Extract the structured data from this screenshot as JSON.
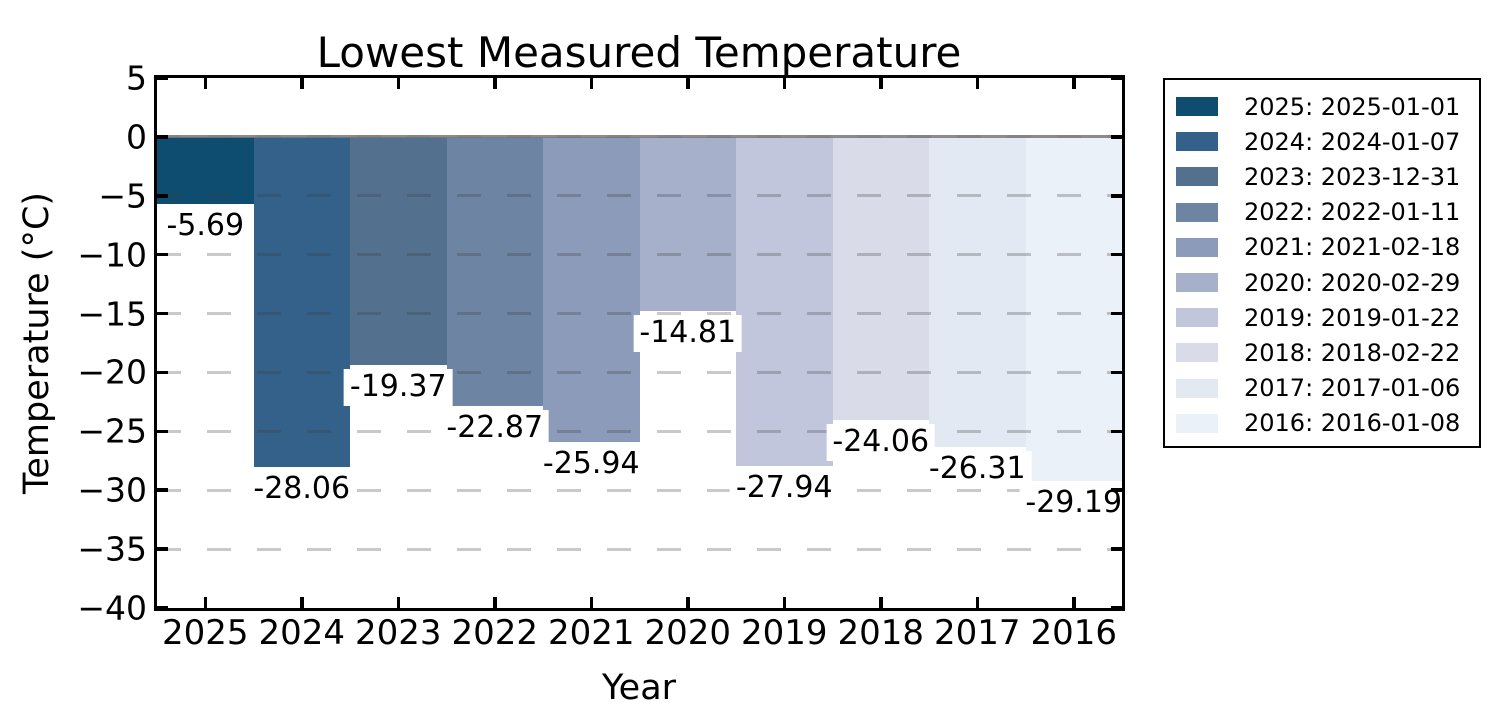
{
  "title": "Lowest Measured Temperature",
  "xlabel": "Year",
  "ylabel": "Temperature (°C)",
  "chart_data": {
    "type": "bar",
    "title": "Lowest Measured Temperature",
    "xlabel": "Year",
    "ylabel": "Temperature (°C)",
    "categories": [
      "2025",
      "2024",
      "2023",
      "2022",
      "2021",
      "2020",
      "2019",
      "2018",
      "2017",
      "2016"
    ],
    "values": [
      -5.69,
      -28.06,
      -19.37,
      -22.87,
      -25.94,
      -14.81,
      -27.94,
      -24.06,
      -26.31,
      -29.19
    ],
    "value_labels": [
      "-5.69",
      "-28.06",
      "-19.37",
      "-22.87",
      "-25.94",
      "-14.81",
      "-27.94",
      "-24.06",
      "-26.31",
      "-29.19"
    ],
    "bar_colors": [
      "#0E4D70",
      "#34618A",
      "#53718F",
      "#6E84A3",
      "#8B9BB9",
      "#A7B0CB",
      "#C2C6DC",
      "#D9DCE8",
      "#E3E9F3",
      "#EBF1F9"
    ],
    "ylim": [
      -40,
      5
    ],
    "yticks": [
      5,
      0,
      -5,
      -10,
      -15,
      -20,
      -25,
      -30,
      -35,
      -40
    ],
    "grid": "dashed horizontal gray, zero line solid gray",
    "bar_width": "full category width (bars touching)",
    "legend_position": "outside right",
    "legend": [
      {
        "label": "2025: 2025-01-01",
        "color": "#0E4D70"
      },
      {
        "label": "2024: 2024-01-07",
        "color": "#34618A"
      },
      {
        "label": "2023: 2023-12-31",
        "color": "#53718F"
      },
      {
        "label": "2022: 2022-01-11",
        "color": "#6E84A3"
      },
      {
        "label": "2021: 2021-02-18",
        "color": "#8B9BB9"
      },
      {
        "label": "2020: 2020-02-29",
        "color": "#A7B0CB"
      },
      {
        "label": "2019: 2019-01-22",
        "color": "#C2C6DC"
      },
      {
        "label": "2018: 2018-02-22",
        "color": "#D9DCE8"
      },
      {
        "label": "2017: 2017-01-06",
        "color": "#E3E9F3"
      },
      {
        "label": "2016: 2016-01-08",
        "color": "#EBF1F9"
      }
    ]
  }
}
